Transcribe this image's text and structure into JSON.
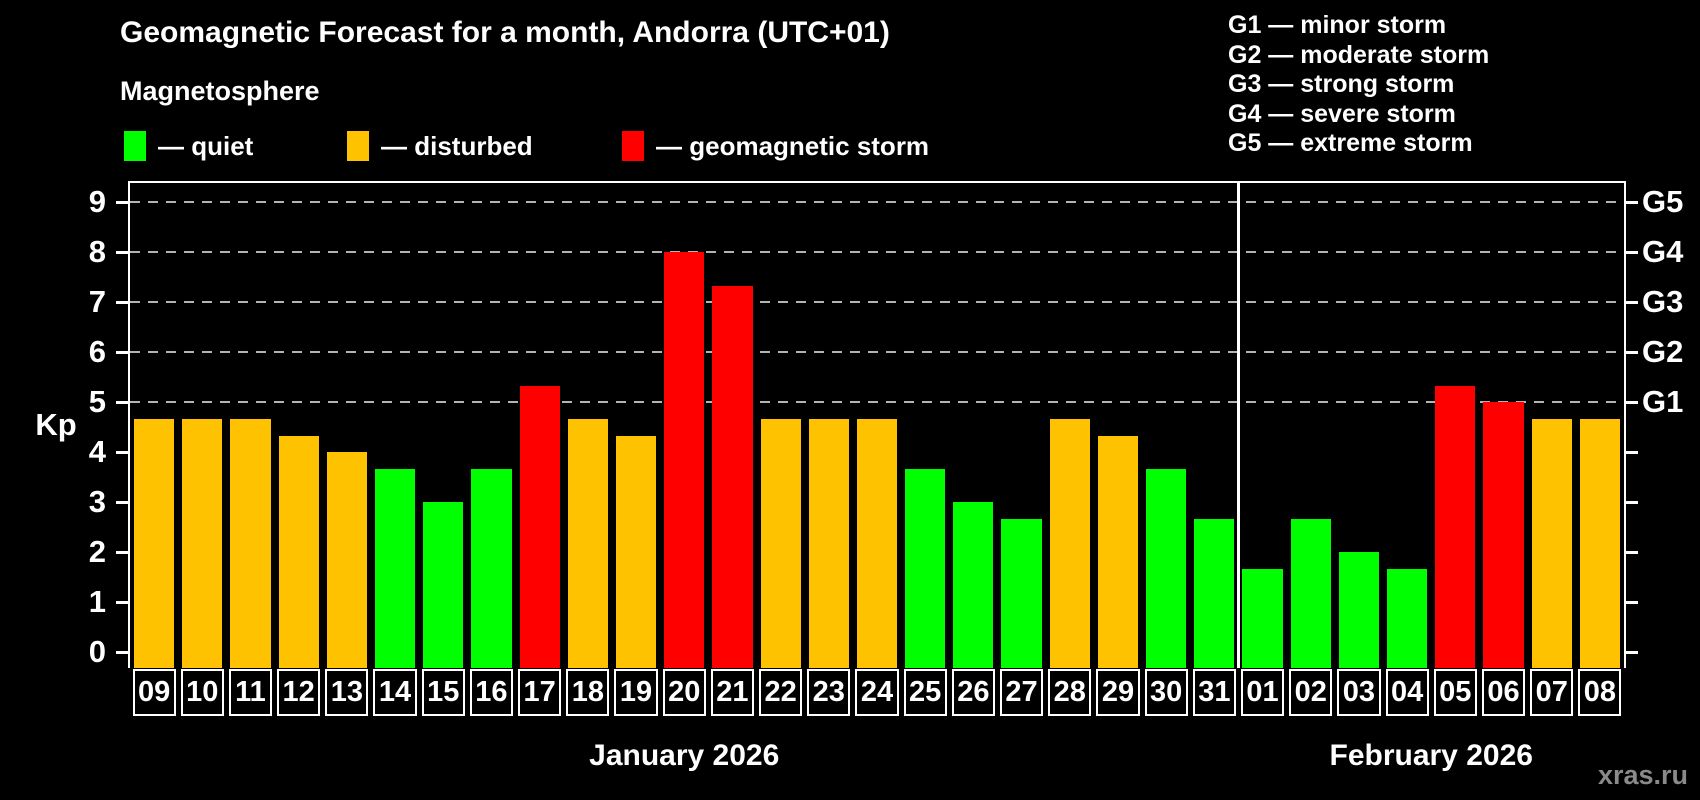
{
  "header": {
    "title": "Geomagnetic Forecast for a month, Andorra (UTC+01)",
    "subtitle": "Magnetosphere"
  },
  "legend": {
    "items": [
      {
        "key": "quiet",
        "label": "— quiet",
        "color": "#00ff00"
      },
      {
        "key": "disturbed",
        "label": "— disturbed",
        "color": "#ffc200"
      },
      {
        "key": "storm",
        "label": "— geomagnetic storm",
        "color": "#ff0000"
      }
    ]
  },
  "g_legend": {
    "items": [
      {
        "label": "G1 — minor storm"
      },
      {
        "label": "G2 — moderate storm"
      },
      {
        "label": "G3 — strong storm"
      },
      {
        "label": "G4 — severe storm"
      },
      {
        "label": "G5 — extreme storm"
      }
    ]
  },
  "axes": {
    "ylabel": "Kp",
    "yticks": [
      "0",
      "1",
      "2",
      "3",
      "4",
      "5",
      "6",
      "7",
      "8",
      "9"
    ],
    "right_labels": [
      {
        "label": "G1",
        "kp": 5
      },
      {
        "label": "G2",
        "kp": 6
      },
      {
        "label": "G3",
        "kp": 7
      },
      {
        "label": "G4",
        "kp": 8
      },
      {
        "label": "G5",
        "kp": 9
      }
    ]
  },
  "watermark": "xras.ru",
  "chart_data": {
    "type": "bar",
    "title": "Geomagnetic Forecast for a month, Andorra (UTC+01)",
    "xlabel": "",
    "ylabel": "Kp",
    "ylim": [
      -0.3,
      9.4
    ],
    "grid": {
      "values": [
        5,
        6,
        7,
        8,
        9
      ],
      "style": "dashed",
      "color": "#b3b3b3"
    },
    "legend_position": "top",
    "status_colors": {
      "quiet": "#00ff00",
      "disturbed": "#ffc200",
      "storm": "#ff0000"
    },
    "months": [
      {
        "label": "January 2026",
        "days": 23
      },
      {
        "label": "February 2026",
        "days": 8
      }
    ],
    "bars": [
      {
        "day": "09",
        "month": 0,
        "kp": 4.67,
        "status": "disturbed"
      },
      {
        "day": "10",
        "month": 0,
        "kp": 4.67,
        "status": "disturbed"
      },
      {
        "day": "11",
        "month": 0,
        "kp": 4.67,
        "status": "disturbed"
      },
      {
        "day": "12",
        "month": 0,
        "kp": 4.33,
        "status": "disturbed"
      },
      {
        "day": "13",
        "month": 0,
        "kp": 4.0,
        "status": "disturbed"
      },
      {
        "day": "14",
        "month": 0,
        "kp": 3.67,
        "status": "quiet"
      },
      {
        "day": "15",
        "month": 0,
        "kp": 3.0,
        "status": "quiet"
      },
      {
        "day": "16",
        "month": 0,
        "kp": 3.67,
        "status": "quiet"
      },
      {
        "day": "17",
        "month": 0,
        "kp": 5.33,
        "status": "storm"
      },
      {
        "day": "18",
        "month": 0,
        "kp": 4.67,
        "status": "disturbed"
      },
      {
        "day": "19",
        "month": 0,
        "kp": 4.33,
        "status": "disturbed"
      },
      {
        "day": "20",
        "month": 0,
        "kp": 8.0,
        "status": "storm"
      },
      {
        "day": "21",
        "month": 0,
        "kp": 7.33,
        "status": "storm"
      },
      {
        "day": "22",
        "month": 0,
        "kp": 4.67,
        "status": "disturbed"
      },
      {
        "day": "23",
        "month": 0,
        "kp": 4.67,
        "status": "disturbed"
      },
      {
        "day": "24",
        "month": 0,
        "kp": 4.67,
        "status": "disturbed"
      },
      {
        "day": "25",
        "month": 0,
        "kp": 3.67,
        "status": "quiet"
      },
      {
        "day": "26",
        "month": 0,
        "kp": 3.0,
        "status": "quiet"
      },
      {
        "day": "27",
        "month": 0,
        "kp": 2.67,
        "status": "quiet"
      },
      {
        "day": "28",
        "month": 0,
        "kp": 4.67,
        "status": "disturbed"
      },
      {
        "day": "29",
        "month": 0,
        "kp": 4.33,
        "status": "disturbed"
      },
      {
        "day": "30",
        "month": 0,
        "kp": 3.67,
        "status": "quiet"
      },
      {
        "day": "31",
        "month": 0,
        "kp": 2.67,
        "status": "quiet"
      },
      {
        "day": "01",
        "month": 1,
        "kp": 1.67,
        "status": "quiet"
      },
      {
        "day": "02",
        "month": 1,
        "kp": 2.67,
        "status": "quiet"
      },
      {
        "day": "03",
        "month": 1,
        "kp": 2.0,
        "status": "quiet"
      },
      {
        "day": "04",
        "month": 1,
        "kp": 1.67,
        "status": "quiet"
      },
      {
        "day": "05",
        "month": 1,
        "kp": 5.33,
        "status": "storm"
      },
      {
        "day": "06",
        "month": 1,
        "kp": 5.0,
        "status": "storm"
      },
      {
        "day": "07",
        "month": 1,
        "kp": 4.67,
        "status": "disturbed"
      },
      {
        "day": "08",
        "month": 1,
        "kp": 4.67,
        "status": "disturbed"
      }
    ]
  }
}
